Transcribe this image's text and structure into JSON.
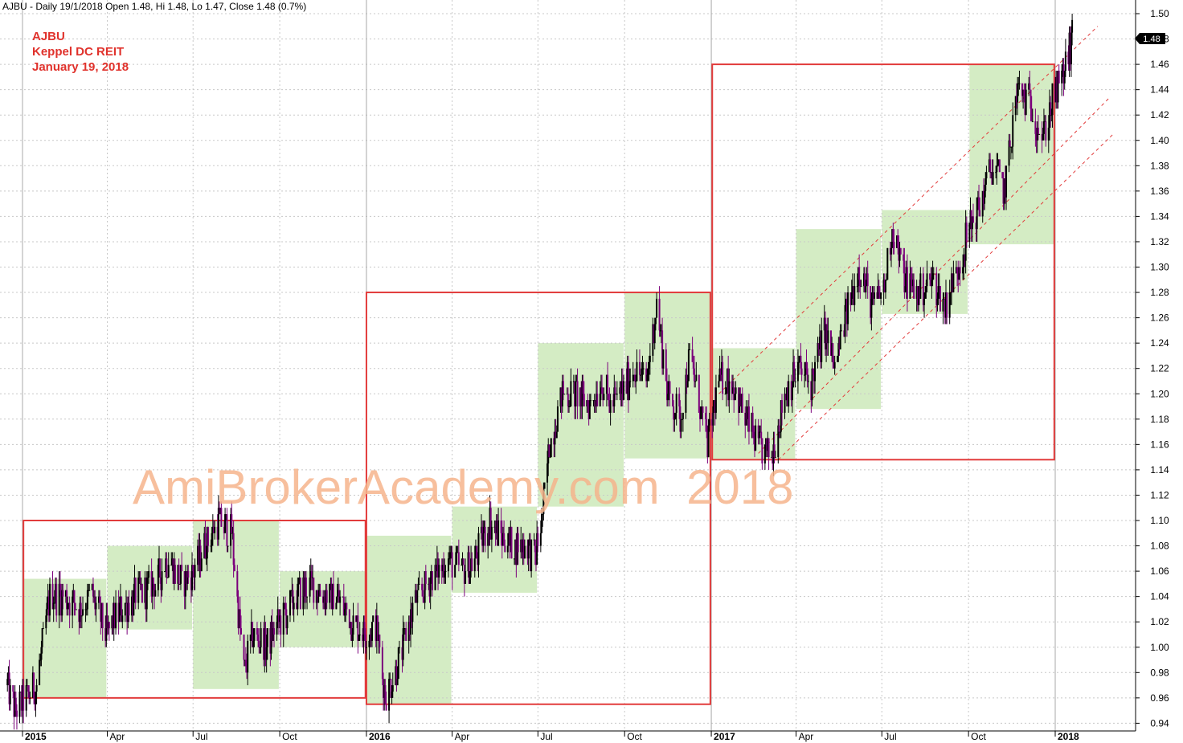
{
  "header": {
    "text": "AJBU - Daily 19/1/2018 Open 1.48, Hi 1.48, Lo 1.47, Close 1.48 (0.7%)"
  },
  "annotation": {
    "ticker": "AJBU",
    "name": "Keppel DC REIT",
    "date": "January 19, 2018"
  },
  "watermark": {
    "text": "AmiBrokerAcademy.com  2018"
  },
  "chart_data": {
    "type": "candlestick",
    "grid": true,
    "y_axis_side": "right",
    "ylim": [
      0.93,
      1.51
    ],
    "y_ticks": [
      "1.50",
      "1.48",
      "1.46",
      "1.44",
      "1.42",
      "1.40",
      "1.38",
      "1.36",
      "1.34",
      "1.32",
      "1.30",
      "1.28",
      "1.26",
      "1.24",
      "1.22",
      "1.20",
      "1.18",
      "1.16",
      "1.14",
      "1.12",
      "1.10",
      "1.08",
      "1.06",
      "1.04",
      "1.02",
      "1.00",
      "0.98",
      "0.96",
      "0.94"
    ],
    "last_price_label": "1.48",
    "x_ticks": [
      {
        "label": "2015",
        "date": "2015-01-01",
        "major": true
      },
      {
        "label": "Apr",
        "date": "2015-04-01",
        "major": false
      },
      {
        "label": "Jul",
        "date": "2015-07-01",
        "major": false
      },
      {
        "label": "Oct",
        "date": "2015-10-01",
        "major": false
      },
      {
        "label": "2016",
        "date": "2016-01-01",
        "major": true
      },
      {
        "label": "Apr",
        "date": "2016-04-01",
        "major": false
      },
      {
        "label": "Jul",
        "date": "2016-07-01",
        "major": false
      },
      {
        "label": "Oct",
        "date": "2016-10-01",
        "major": false
      },
      {
        "label": "2017",
        "date": "2017-01-01",
        "major": true
      },
      {
        "label": "Apr",
        "date": "2017-04-01",
        "major": false
      },
      {
        "label": "Jul",
        "date": "2017-07-01",
        "major": false
      },
      {
        "label": "Oct",
        "date": "2017-10-01",
        "major": false
      },
      {
        "label": "2018",
        "date": "2018-01-01",
        "major": true
      }
    ],
    "price_path": [
      [
        "2014-12-16",
        0.97
      ],
      [
        "2014-12-24",
        0.95
      ],
      [
        "2015-01-05",
        0.96
      ],
      [
        "2015-01-16",
        0.97
      ],
      [
        "2015-01-30",
        1.04
      ],
      [
        "2015-02-16",
        1.04
      ],
      [
        "2015-03-02",
        1.03
      ],
      [
        "2015-03-16",
        1.04
      ],
      [
        "2015-03-31",
        1.01
      ],
      [
        "2015-04-16",
        1.03
      ],
      [
        "2015-05-01",
        1.04
      ],
      [
        "2015-05-22",
        1.05
      ],
      [
        "2015-06-05",
        1.07
      ],
      [
        "2015-06-19",
        1.05
      ],
      [
        "2015-07-01",
        1.06
      ],
      [
        "2015-07-14",
        1.08
      ],
      [
        "2015-07-28",
        1.1
      ],
      [
        "2015-08-11",
        1.09
      ],
      [
        "2015-08-19",
        1.02
      ],
      [
        "2015-08-24",
        0.98
      ],
      [
        "2015-09-02",
        1.01
      ],
      [
        "2015-09-16",
        1.0
      ],
      [
        "2015-10-01",
        1.02
      ],
      [
        "2015-10-19",
        1.04
      ],
      [
        "2015-11-02",
        1.05
      ],
      [
        "2015-11-17",
        1.04
      ],
      [
        "2015-12-01",
        1.04
      ],
      [
        "2015-12-17",
        1.02
      ],
      [
        "2015-12-31",
        1.01
      ],
      [
        "2016-01-11",
        1.02
      ],
      [
        "2016-01-21",
        0.96
      ],
      [
        "2016-02-05",
        0.99
      ],
      [
        "2016-02-19",
        1.03
      ],
      [
        "2016-03-04",
        1.05
      ],
      [
        "2016-03-16",
        1.06
      ],
      [
        "2016-03-29",
        1.07
      ],
      [
        "2016-04-12",
        1.06
      ],
      [
        "2016-04-26",
        1.07
      ],
      [
        "2016-05-10",
        1.1
      ],
      [
        "2016-05-20",
        1.09
      ],
      [
        "2016-06-03",
        1.08
      ],
      [
        "2016-06-20",
        1.08
      ],
      [
        "2016-06-28",
        1.07
      ],
      [
        "2016-07-05",
        1.1
      ],
      [
        "2016-07-13",
        1.16
      ],
      [
        "2016-07-27",
        1.2
      ],
      [
        "2016-08-10",
        1.2
      ],
      [
        "2016-08-24",
        1.19
      ],
      [
        "2016-09-07",
        1.21
      ],
      [
        "2016-09-16",
        1.19
      ],
      [
        "2016-09-28",
        1.2
      ],
      [
        "2016-10-11",
        1.22
      ],
      [
        "2016-10-24",
        1.21
      ],
      [
        "2016-11-04",
        1.27
      ],
      [
        "2016-11-16",
        1.2
      ],
      [
        "2016-11-29",
        1.18
      ],
      [
        "2016-12-09",
        1.23
      ],
      [
        "2016-12-20",
        1.19
      ],
      [
        "2016-12-28",
        1.16
      ],
      [
        "2017-01-09",
        1.21
      ],
      [
        "2017-01-23",
        1.21
      ],
      [
        "2017-02-06",
        1.18
      ],
      [
        "2017-02-20",
        1.16
      ],
      [
        "2017-03-06",
        1.15
      ],
      [
        "2017-03-20",
        1.2
      ],
      [
        "2017-04-03",
        1.22
      ],
      [
        "2017-04-17",
        1.21
      ],
      [
        "2017-05-02",
        1.25
      ],
      [
        "2017-05-12",
        1.22
      ],
      [
        "2017-05-26",
        1.27
      ],
      [
        "2017-06-07",
        1.3
      ],
      [
        "2017-06-20",
        1.27
      ],
      [
        "2017-07-03",
        1.28
      ],
      [
        "2017-07-12",
        1.33
      ],
      [
        "2017-07-26",
        1.29
      ],
      [
        "2017-08-09",
        1.28
      ],
      [
        "2017-08-23",
        1.29
      ],
      [
        "2017-09-06",
        1.27
      ],
      [
        "2017-09-20",
        1.3
      ],
      [
        "2017-10-02",
        1.33
      ],
      [
        "2017-10-13",
        1.35
      ],
      [
        "2017-10-26",
        1.38
      ],
      [
        "2017-11-08",
        1.36
      ],
      [
        "2017-11-22",
        1.44
      ],
      [
        "2017-12-06",
        1.43
      ],
      [
        "2017-12-18",
        1.4
      ],
      [
        "2017-12-29",
        1.43
      ],
      [
        "2018-01-09",
        1.45
      ],
      [
        "2018-01-19",
        1.48
      ]
    ],
    "red_boxes": [
      {
        "x0": "2015-01-02",
        "x1": "2015-12-31",
        "y0": 0.96,
        "y1": 1.1
      },
      {
        "x0": "2016-01-01",
        "x1": "2016-12-31",
        "y0": 0.955,
        "y1": 1.28
      },
      {
        "x0": "2017-01-02",
        "x1": "2017-12-31",
        "y0": 1.148,
        "y1": 1.46
      }
    ],
    "quarter_zones": [
      {
        "x0": "2015-01-02",
        "x1": "2015-03-31",
        "y0": 0.96,
        "y1": 1.054
      },
      {
        "x0": "2015-04-01",
        "x1": "2015-06-30",
        "y0": 1.014,
        "y1": 1.08
      },
      {
        "x0": "2015-07-01",
        "x1": "2015-09-30",
        "y0": 0.967,
        "y1": 1.1
      },
      {
        "x0": "2015-10-01",
        "x1": "2015-12-31",
        "y0": 1.0,
        "y1": 1.06
      },
      {
        "x0": "2016-01-01",
        "x1": "2016-03-31",
        "y0": 0.955,
        "y1": 1.088
      },
      {
        "x0": "2016-04-01",
        "x1": "2016-06-30",
        "y0": 1.043,
        "y1": 1.111
      },
      {
        "x0": "2016-07-01",
        "x1": "2016-09-30",
        "y0": 1.111,
        "y1": 1.24
      },
      {
        "x0": "2016-10-01",
        "x1": "2016-12-31",
        "y0": 1.149,
        "y1": 1.28
      },
      {
        "x0": "2017-01-02",
        "x1": "2017-03-31",
        "y0": 1.148,
        "y1": 1.236
      },
      {
        "x0": "2017-04-01",
        "x1": "2017-06-30",
        "y0": 1.188,
        "y1": 1.33
      },
      {
        "x0": "2017-07-01",
        "x1": "2017-09-30",
        "y0": 1.263,
        "y1": 1.345
      },
      {
        "x0": "2017-10-02",
        "x1": "2017-12-31",
        "y0": 1.318,
        "y1": 1.46
      }
    ],
    "trend_lines": [
      {
        "x0": "2017-01-09",
        "y0": 1.2,
        "x1": "2018-02-15",
        "y1": 1.49
      },
      {
        "x0": "2017-02-20",
        "y0": 1.153,
        "x1": "2018-02-28",
        "y1": 1.434
      },
      {
        "x0": "2017-03-13",
        "y0": 1.148,
        "x1": "2018-03-05",
        "y1": 1.406
      }
    ],
    "colors": {
      "up": "#000000",
      "down": "#7b007b",
      "box": "#e23b3b",
      "zone": "#d4ecc4",
      "trend": "#e23b3b",
      "grid": "#c8c8c8",
      "major_grid": "#a8a8a8"
    }
  }
}
